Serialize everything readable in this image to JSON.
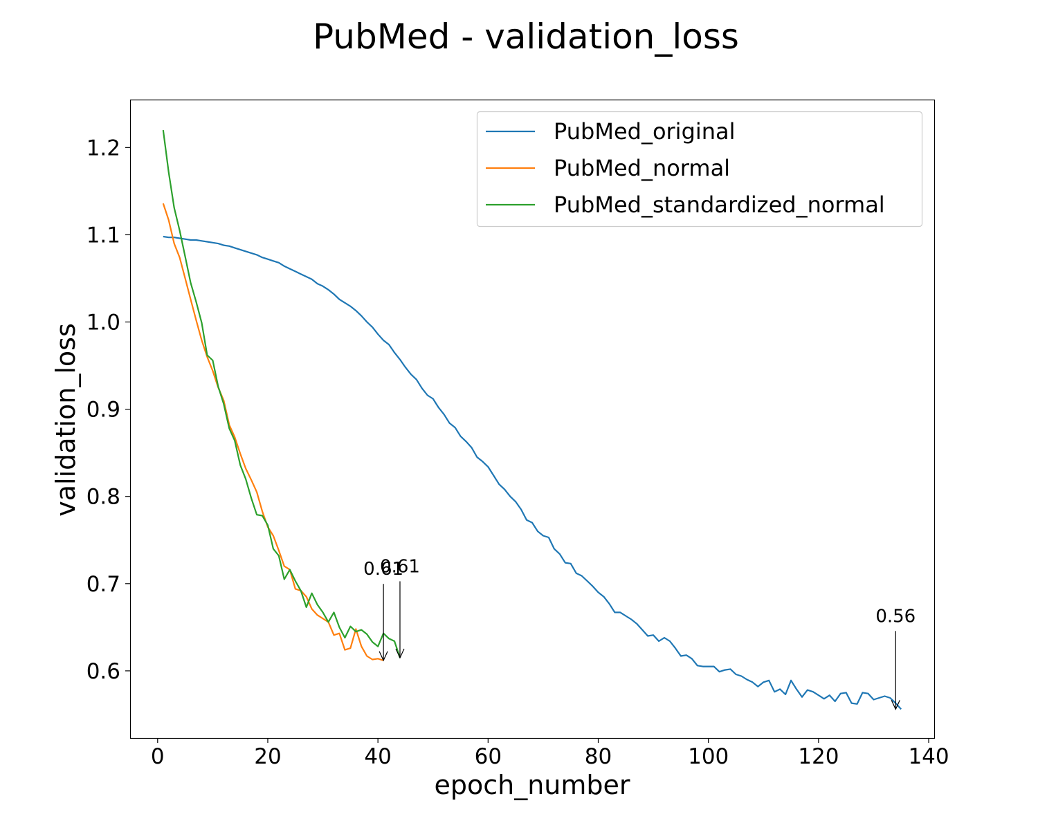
{
  "chart_data": {
    "type": "line",
    "title": "PubMed - validation_loss",
    "xlabel": "epoch_number",
    "ylabel": "validation_loss",
    "xlim": [
      -5,
      141
    ],
    "ylim": [
      0.523,
      1.255
    ],
    "xticks": [
      0,
      20,
      40,
      60,
      80,
      100,
      120,
      140
    ],
    "yticks": [
      0.6,
      0.7,
      0.8,
      0.9,
      1.0,
      1.1,
      1.2
    ],
    "ytick_labels": [
      "0.6",
      "0.7",
      "0.8",
      "0.9",
      "1.0",
      "1.1",
      "1.2"
    ],
    "grid": false,
    "legend_position": "top-right",
    "series": [
      {
        "name": "PubMed_original",
        "color": "#1f77b4",
        "start_epoch": 1,
        "values": [
          1.098,
          1.097,
          1.097,
          1.096,
          1.095,
          1.094,
          1.094,
          1.093,
          1.092,
          1.091,
          1.09,
          1.088,
          1.087,
          1.085,
          1.083,
          1.081,
          1.079,
          1.077,
          1.074,
          1.072,
          1.07,
          1.068,
          1.064,
          1.061,
          1.058,
          1.055,
          1.052,
          1.049,
          1.044,
          1.041,
          1.037,
          1.032,
          1.026,
          1.022,
          1.018,
          1.013,
          1.007,
          1.0,
          0.994,
          0.986,
          0.979,
          0.974,
          0.965,
          0.957,
          0.948,
          0.94,
          0.934,
          0.924,
          0.916,
          0.912,
          0.902,
          0.894,
          0.884,
          0.879,
          0.869,
          0.863,
          0.856,
          0.845,
          0.84,
          0.834,
          0.824,
          0.814,
          0.808,
          0.8,
          0.794,
          0.785,
          0.773,
          0.77,
          0.76,
          0.755,
          0.753,
          0.74,
          0.734,
          0.724,
          0.723,
          0.712,
          0.709,
          0.703,
          0.697,
          0.69,
          0.685,
          0.677,
          0.667,
          0.667,
          0.663,
          0.659,
          0.654,
          0.647,
          0.64,
          0.641,
          0.634,
          0.638,
          0.634,
          0.626,
          0.617,
          0.618,
          0.614,
          0.606,
          0.605,
          0.605,
          0.605,
          0.599,
          0.601,
          0.602,
          0.596,
          0.594,
          0.59,
          0.587,
          0.582,
          0.587,
          0.589,
          0.576,
          0.579,
          0.573,
          0.589,
          0.579,
          0.57,
          0.578,
          0.576,
          0.572,
          0.568,
          0.572,
          0.565,
          0.574,
          0.575,
          0.563,
          0.562,
          0.575,
          0.574,
          0.567,
          0.569,
          0.571,
          0.569,
          0.563,
          0.556
        ]
      },
      {
        "name": "PubMed_normal",
        "color": "#ff7f0e",
        "start_epoch": 1,
        "values": [
          1.136,
          1.117,
          1.09,
          1.074,
          1.05,
          1.026,
          1.002,
          0.979,
          0.96,
          0.944,
          0.925,
          0.91,
          0.882,
          0.868,
          0.849,
          0.832,
          0.819,
          0.805,
          0.783,
          0.765,
          0.755,
          0.738,
          0.72,
          0.716,
          0.694,
          0.692,
          0.685,
          0.671,
          0.664,
          0.66,
          0.656,
          0.641,
          0.643,
          0.624,
          0.626,
          0.648,
          0.628,
          0.617,
          0.613,
          0.614,
          0.612
        ]
      },
      {
        "name": "PubMed_standardized_normal",
        "color": "#2ca02c",
        "start_epoch": 1,
        "values": [
          1.22,
          1.172,
          1.131,
          1.105,
          1.075,
          1.045,
          1.023,
          0.999,
          0.962,
          0.956,
          0.926,
          0.906,
          0.878,
          0.864,
          0.836,
          0.82,
          0.798,
          0.779,
          0.778,
          0.767,
          0.74,
          0.732,
          0.705,
          0.716,
          0.703,
          0.692,
          0.673,
          0.689,
          0.676,
          0.667,
          0.656,
          0.667,
          0.65,
          0.638,
          0.651,
          0.645,
          0.647,
          0.642,
          0.633,
          0.628,
          0.643,
          0.637,
          0.634,
          0.615
        ]
      }
    ],
    "annotations": [
      {
        "text": "0.61",
        "x": 41,
        "y": 0.612,
        "text_y": 0.71
      },
      {
        "text": "0.61",
        "x": 44,
        "y": 0.615,
        "text_y": 0.713
      },
      {
        "text": "0.56",
        "x": 134,
        "y": 0.556,
        "text_y": 0.656
      }
    ]
  }
}
